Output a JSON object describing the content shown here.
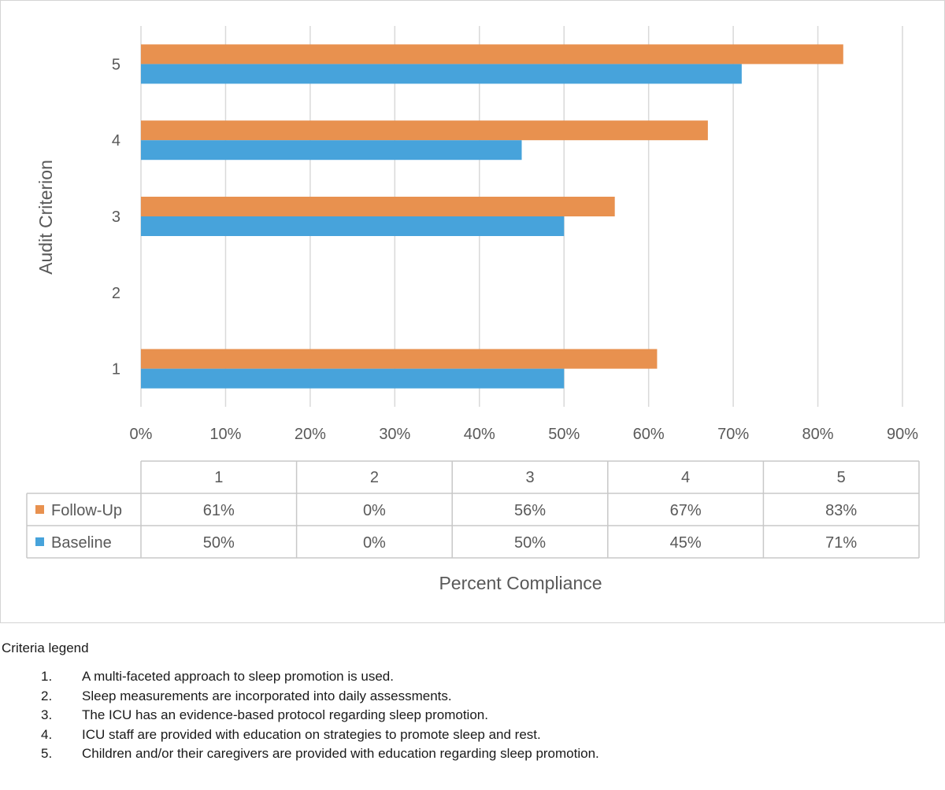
{
  "chart_data": {
    "type": "bar",
    "orientation": "horizontal",
    "categories": [
      "1",
      "2",
      "3",
      "4",
      "5"
    ],
    "series": [
      {
        "name": "Follow-Up",
        "color": "#E8914F",
        "values": [
          61,
          0,
          56,
          67,
          83
        ],
        "labels": [
          "61%",
          "0%",
          "56%",
          "67%",
          "83%"
        ]
      },
      {
        "name": "Baseline",
        "color": "#47A3DB",
        "values": [
          50,
          0,
          50,
          45,
          71
        ],
        "labels": [
          "50%",
          "0%",
          "50%",
          "45%",
          "71%"
        ]
      }
    ],
    "xlim": [
      0,
      90
    ],
    "xticks": [
      "0%",
      "10%",
      "20%",
      "30%",
      "40%",
      "50%",
      "60%",
      "70%",
      "80%",
      "90%"
    ],
    "xlabel": "Percent Compliance",
    "ylabel": "Audit Criterion",
    "grid": "vertical",
    "data_table": true
  },
  "legend": {
    "heading": "Criteria legend",
    "items": [
      {
        "num": "1.",
        "text": "A multi-faceted approach to sleep promotion is used."
      },
      {
        "num": "2.",
        "text": "Sleep measurements are incorporated into daily assessments."
      },
      {
        "num": "3.",
        "text": "The ICU has an evidence-based protocol regarding sleep promotion."
      },
      {
        "num": "4.",
        "text": "ICU staff are provided with education on strategies to promote sleep and rest."
      },
      {
        "num": "5.",
        "text": "Children and/or their caregivers are provided with education regarding sleep promotion."
      }
    ]
  }
}
